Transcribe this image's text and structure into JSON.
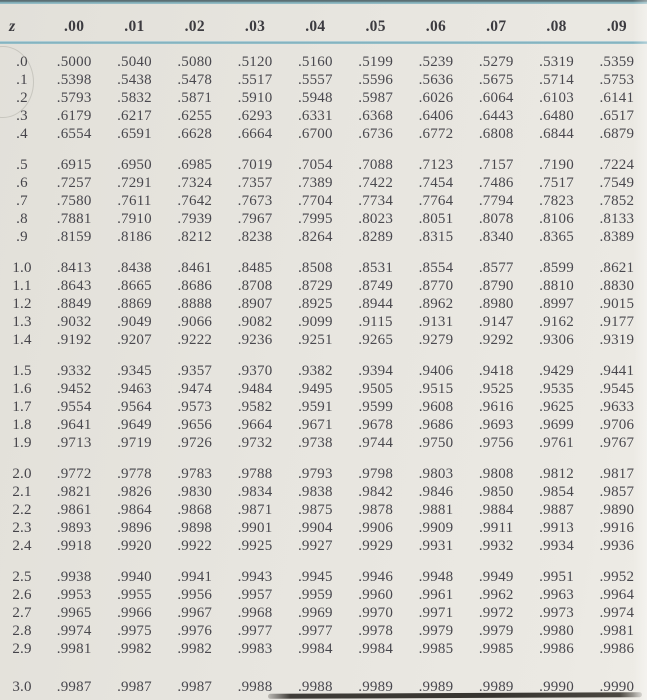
{
  "table": {
    "corner_header": "z",
    "column_headers": [
      ".00",
      ".01",
      ".02",
      ".03",
      ".04",
      ".05",
      ".06",
      ".07",
      ".08",
      ".09"
    ],
    "groups": [
      {
        "rows": [
          {
            "label": ".0",
            "values": [
              ".5000",
              ".5040",
              ".5080",
              ".5120",
              ".5160",
              ".5199",
              ".5239",
              ".5279",
              ".5319",
              ".5359"
            ]
          },
          {
            "label": ".1",
            "values": [
              ".5398",
              ".5438",
              ".5478",
              ".5517",
              ".5557",
              ".5596",
              ".5636",
              ".5675",
              ".5714",
              ".5753"
            ]
          },
          {
            "label": ".2",
            "values": [
              ".5793",
              ".5832",
              ".5871",
              ".5910",
              ".5948",
              ".5987",
              ".6026",
              ".6064",
              ".6103",
              ".6141"
            ]
          },
          {
            "label": ".3",
            "values": [
              ".6179",
              ".6217",
              ".6255",
              ".6293",
              ".6331",
              ".6368",
              ".6406",
              ".6443",
              ".6480",
              ".6517"
            ]
          },
          {
            "label": ".4",
            "values": [
              ".6554",
              ".6591",
              ".6628",
              ".6664",
              ".6700",
              ".6736",
              ".6772",
              ".6808",
              ".6844",
              ".6879"
            ]
          }
        ]
      },
      {
        "rows": [
          {
            "label": ".5",
            "values": [
              ".6915",
              ".6950",
              ".6985",
              ".7019",
              ".7054",
              ".7088",
              ".7123",
              ".7157",
              ".7190",
              ".7224"
            ]
          },
          {
            "label": ".6",
            "values": [
              ".7257",
              ".7291",
              ".7324",
              ".7357",
              ".7389",
              ".7422",
              ".7454",
              ".7486",
              ".7517",
              ".7549"
            ]
          },
          {
            "label": ".7",
            "values": [
              ".7580",
              ".7611",
              ".7642",
              ".7673",
              ".7704",
              ".7734",
              ".7764",
              ".7794",
              ".7823",
              ".7852"
            ]
          },
          {
            "label": ".8",
            "values": [
              ".7881",
              ".7910",
              ".7939",
              ".7967",
              ".7995",
              ".8023",
              ".8051",
              ".8078",
              ".8106",
              ".8133"
            ]
          },
          {
            "label": ".9",
            "values": [
              ".8159",
              ".8186",
              ".8212",
              ".8238",
              ".8264",
              ".8289",
              ".8315",
              ".8340",
              ".8365",
              ".8389"
            ]
          }
        ]
      },
      {
        "rows": [
          {
            "label": "1.0",
            "values": [
              ".8413",
              ".8438",
              ".8461",
              ".8485",
              ".8508",
              ".8531",
              ".8554",
              ".8577",
              ".8599",
              ".8621"
            ]
          },
          {
            "label": "1.1",
            "values": [
              ".8643",
              ".8665",
              ".8686",
              ".8708",
              ".8729",
              ".8749",
              ".8770",
              ".8790",
              ".8810",
              ".8830"
            ]
          },
          {
            "label": "1.2",
            "values": [
              ".8849",
              ".8869",
              ".8888",
              ".8907",
              ".8925",
              ".8944",
              ".8962",
              ".8980",
              ".8997",
              ".9015"
            ]
          },
          {
            "label": "1.3",
            "values": [
              ".9032",
              ".9049",
              ".9066",
              ".9082",
              ".9099",
              ".9115",
              ".9131",
              ".9147",
              ".9162",
              ".9177"
            ]
          },
          {
            "label": "1.4",
            "values": [
              ".9192",
              ".9207",
              ".9222",
              ".9236",
              ".9251",
              ".9265",
              ".9279",
              ".9292",
              ".9306",
              ".9319"
            ]
          }
        ]
      },
      {
        "rows": [
          {
            "label": "1.5",
            "values": [
              ".9332",
              ".9345",
              ".9357",
              ".9370",
              ".9382",
              ".9394",
              ".9406",
              ".9418",
              ".9429",
              ".9441"
            ]
          },
          {
            "label": "1.6",
            "values": [
              ".9452",
              ".9463",
              ".9474",
              ".9484",
              ".9495",
              ".9505",
              ".9515",
              ".9525",
              ".9535",
              ".9545"
            ]
          },
          {
            "label": "1.7",
            "values": [
              ".9554",
              ".9564",
              ".9573",
              ".9582",
              ".9591",
              ".9599",
              ".9608",
              ".9616",
              ".9625",
              ".9633"
            ]
          },
          {
            "label": "1.8",
            "values": [
              ".9641",
              ".9649",
              ".9656",
              ".9664",
              ".9671",
              ".9678",
              ".9686",
              ".9693",
              ".9699",
              ".9706"
            ]
          },
          {
            "label": "1.9",
            "values": [
              ".9713",
              ".9719",
              ".9726",
              ".9732",
              ".9738",
              ".9744",
              ".9750",
              ".9756",
              ".9761",
              ".9767"
            ]
          }
        ]
      },
      {
        "rows": [
          {
            "label": "2.0",
            "values": [
              ".9772",
              ".9778",
              ".9783",
              ".9788",
              ".9793",
              ".9798",
              ".9803",
              ".9808",
              ".9812",
              ".9817"
            ]
          },
          {
            "label": "2.1",
            "values": [
              ".9821",
              ".9826",
              ".9830",
              ".9834",
              ".9838",
              ".9842",
              ".9846",
              ".9850",
              ".9854",
              ".9857"
            ]
          },
          {
            "label": "2.2",
            "values": [
              ".9861",
              ".9864",
              ".9868",
              ".9871",
              ".9875",
              ".9878",
              ".9881",
              ".9884",
              ".9887",
              ".9890"
            ]
          },
          {
            "label": "2.3",
            "values": [
              ".9893",
              ".9896",
              ".9898",
              ".9901",
              ".9904",
              ".9906",
              ".9909",
              ".9911",
              ".9913",
              ".9916"
            ]
          },
          {
            "label": "2.4",
            "values": [
              ".9918",
              ".9920",
              ".9922",
              ".9925",
              ".9927",
              ".9929",
              ".9931",
              ".9932",
              ".9934",
              ".9936"
            ]
          }
        ]
      },
      {
        "rows": [
          {
            "label": "2.5",
            "values": [
              ".9938",
              ".9940",
              ".9941",
              ".9943",
              ".9945",
              ".9946",
              ".9948",
              ".9949",
              ".9951",
              ".9952"
            ]
          },
          {
            "label": "2.6",
            "values": [
              ".9953",
              ".9955",
              ".9956",
              ".9957",
              ".9959",
              ".9960",
              ".9961",
              ".9962",
              ".9963",
              ".9964"
            ]
          },
          {
            "label": "2.7",
            "values": [
              ".9965",
              ".9966",
              ".9967",
              ".9968",
              ".9969",
              ".9970",
              ".9971",
              ".9972",
              ".9973",
              ".9974"
            ]
          },
          {
            "label": "2.8",
            "values": [
              ".9974",
              ".9975",
              ".9976",
              ".9977",
              ".9977",
              ".9978",
              ".9979",
              ".9979",
              ".9980",
              ".9981"
            ]
          },
          {
            "label": "2.9",
            "values": [
              ".9981",
              ".9982",
              ".9982",
              ".9983",
              ".9984",
              ".9984",
              ".9985",
              ".9985",
              ".9986",
              ".9986"
            ]
          }
        ]
      },
      {
        "rows": [
          {
            "label": "3.0",
            "values": [
              ".9987",
              ".9987",
              ".9987",
              ".9988",
              ".9988",
              ".9989",
              ".9989",
              ".9989",
              ".9990",
              ".9990"
            ]
          }
        ]
      }
    ]
  },
  "colors": {
    "paper_background": "#e6e4de",
    "rule_teal_top": "#7da9b2",
    "rule_teal_header": "#7fafbc",
    "text": "#49484e",
    "scan_shadow": "#36342f"
  }
}
